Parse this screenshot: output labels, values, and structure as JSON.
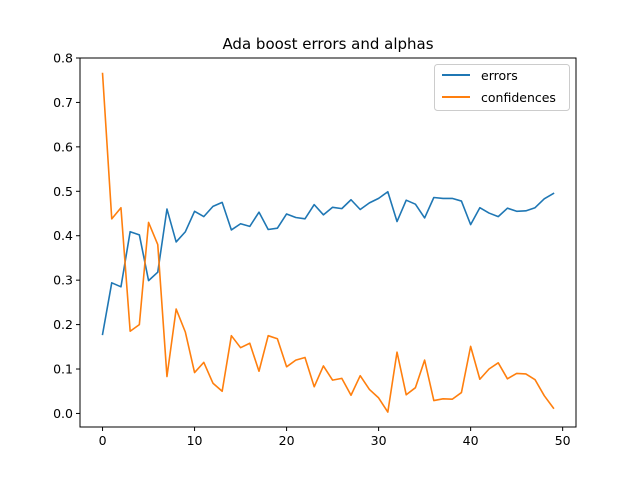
{
  "chart_data": {
    "type": "line",
    "title": "Ada boost errors and alphas",
    "xlabel": "",
    "ylabel": "",
    "xlim": [
      -2.45,
      51.45
    ],
    "ylim": [
      -0.0305,
      0.8
    ],
    "xticks": [
      0,
      10,
      20,
      30,
      40,
      50
    ],
    "xtick_labels": [
      "0",
      "10",
      "20",
      "30",
      "40",
      "50"
    ],
    "yticks": [
      0.0,
      0.1,
      0.2,
      0.3,
      0.4,
      0.5,
      0.6,
      0.7,
      0.8
    ],
    "ytick_labels": [
      "0.0",
      "0.1",
      "0.2",
      "0.3",
      "0.4",
      "0.5",
      "0.6",
      "0.7",
      "0.8"
    ],
    "grid": false,
    "legend_position": "top-right",
    "x": [
      0,
      1,
      2,
      3,
      4,
      5,
      6,
      7,
      8,
      9,
      10,
      11,
      12,
      13,
      14,
      15,
      16,
      17,
      18,
      19,
      20,
      21,
      22,
      23,
      24,
      25,
      26,
      27,
      28,
      29,
      30,
      31,
      32,
      33,
      34,
      35,
      36,
      37,
      38,
      39,
      40,
      41,
      42,
      43,
      44,
      45,
      46,
      47,
      48,
      49
    ],
    "series": [
      {
        "name": "errors",
        "color": "#1f77b4",
        "values": [
          0.178,
          0.294,
          0.285,
          0.409,
          0.402,
          0.299,
          0.318,
          0.46,
          0.386,
          0.409,
          0.455,
          0.443,
          0.466,
          0.475,
          0.413,
          0.427,
          0.421,
          0.453,
          0.414,
          0.417,
          0.449,
          0.441,
          0.438,
          0.47,
          0.447,
          0.464,
          0.461,
          0.481,
          0.459,
          0.474,
          0.484,
          0.499,
          0.432,
          0.48,
          0.471,
          0.44,
          0.486,
          0.484,
          0.484,
          0.478,
          0.425,
          0.463,
          0.451,
          0.443,
          0.462,
          0.455,
          0.456,
          0.463,
          0.483,
          0.495
        ]
      },
      {
        "name": "confidences",
        "color": "#ff7f0e",
        "values": [
          0.765,
          0.438,
          0.463,
          0.185,
          0.2,
          0.43,
          0.38,
          0.083,
          0.235,
          0.183,
          0.092,
          0.115,
          0.068,
          0.05,
          0.175,
          0.148,
          0.158,
          0.095,
          0.175,
          0.168,
          0.105,
          0.12,
          0.126,
          0.06,
          0.107,
          0.075,
          0.079,
          0.041,
          0.085,
          0.054,
          0.035,
          0.003,
          0.138,
          0.042,
          0.058,
          0.12,
          0.029,
          0.033,
          0.032,
          0.047,
          0.151,
          0.077,
          0.1,
          0.114,
          0.078,
          0.09,
          0.089,
          0.076,
          0.04,
          0.012
        ]
      }
    ]
  }
}
